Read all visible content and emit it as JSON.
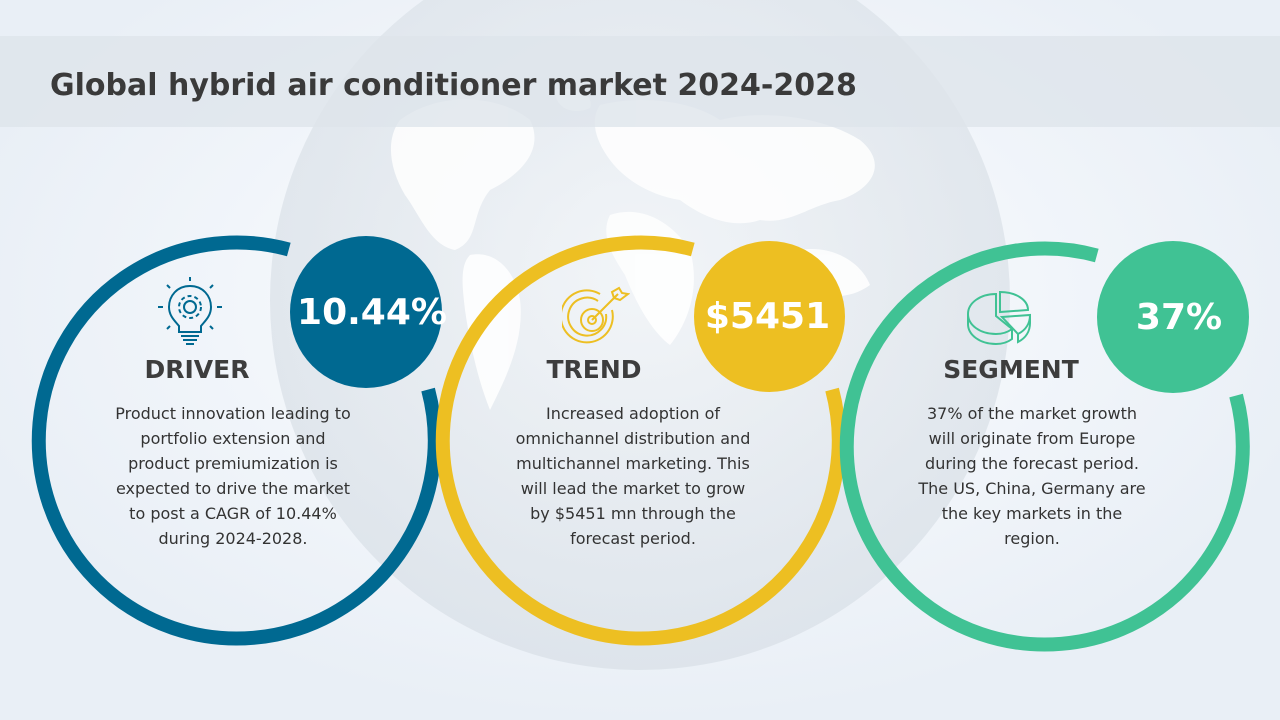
{
  "title": "Global hybrid air conditioner market 2024-2028",
  "cards": [
    {
      "heading": "DRIVER",
      "stat": "10.44%",
      "icon": "lightbulb-gear-icon",
      "color": "#006991",
      "description": "Product innovation leading to portfolio extension and product premiumization is expected to drive the market to post a CAGR of 10.44% during 2024-2028."
    },
    {
      "heading": "TREND",
      "stat": "$5451",
      "icon": "target-arrow-icon",
      "color": "#edbf22",
      "description": "Increased adoption of omnichannel distribution and multichannel marketing. This will lead the market to grow by $5451 mn through the forecast period."
    },
    {
      "heading": "SEGMENT",
      "stat": "37%",
      "icon": "pie-chart-icon",
      "color": "#40c294",
      "description": "37% of the market growth will originate from Europe during the forecast period. The US, China, Germany are the key markets in the region."
    }
  ]
}
